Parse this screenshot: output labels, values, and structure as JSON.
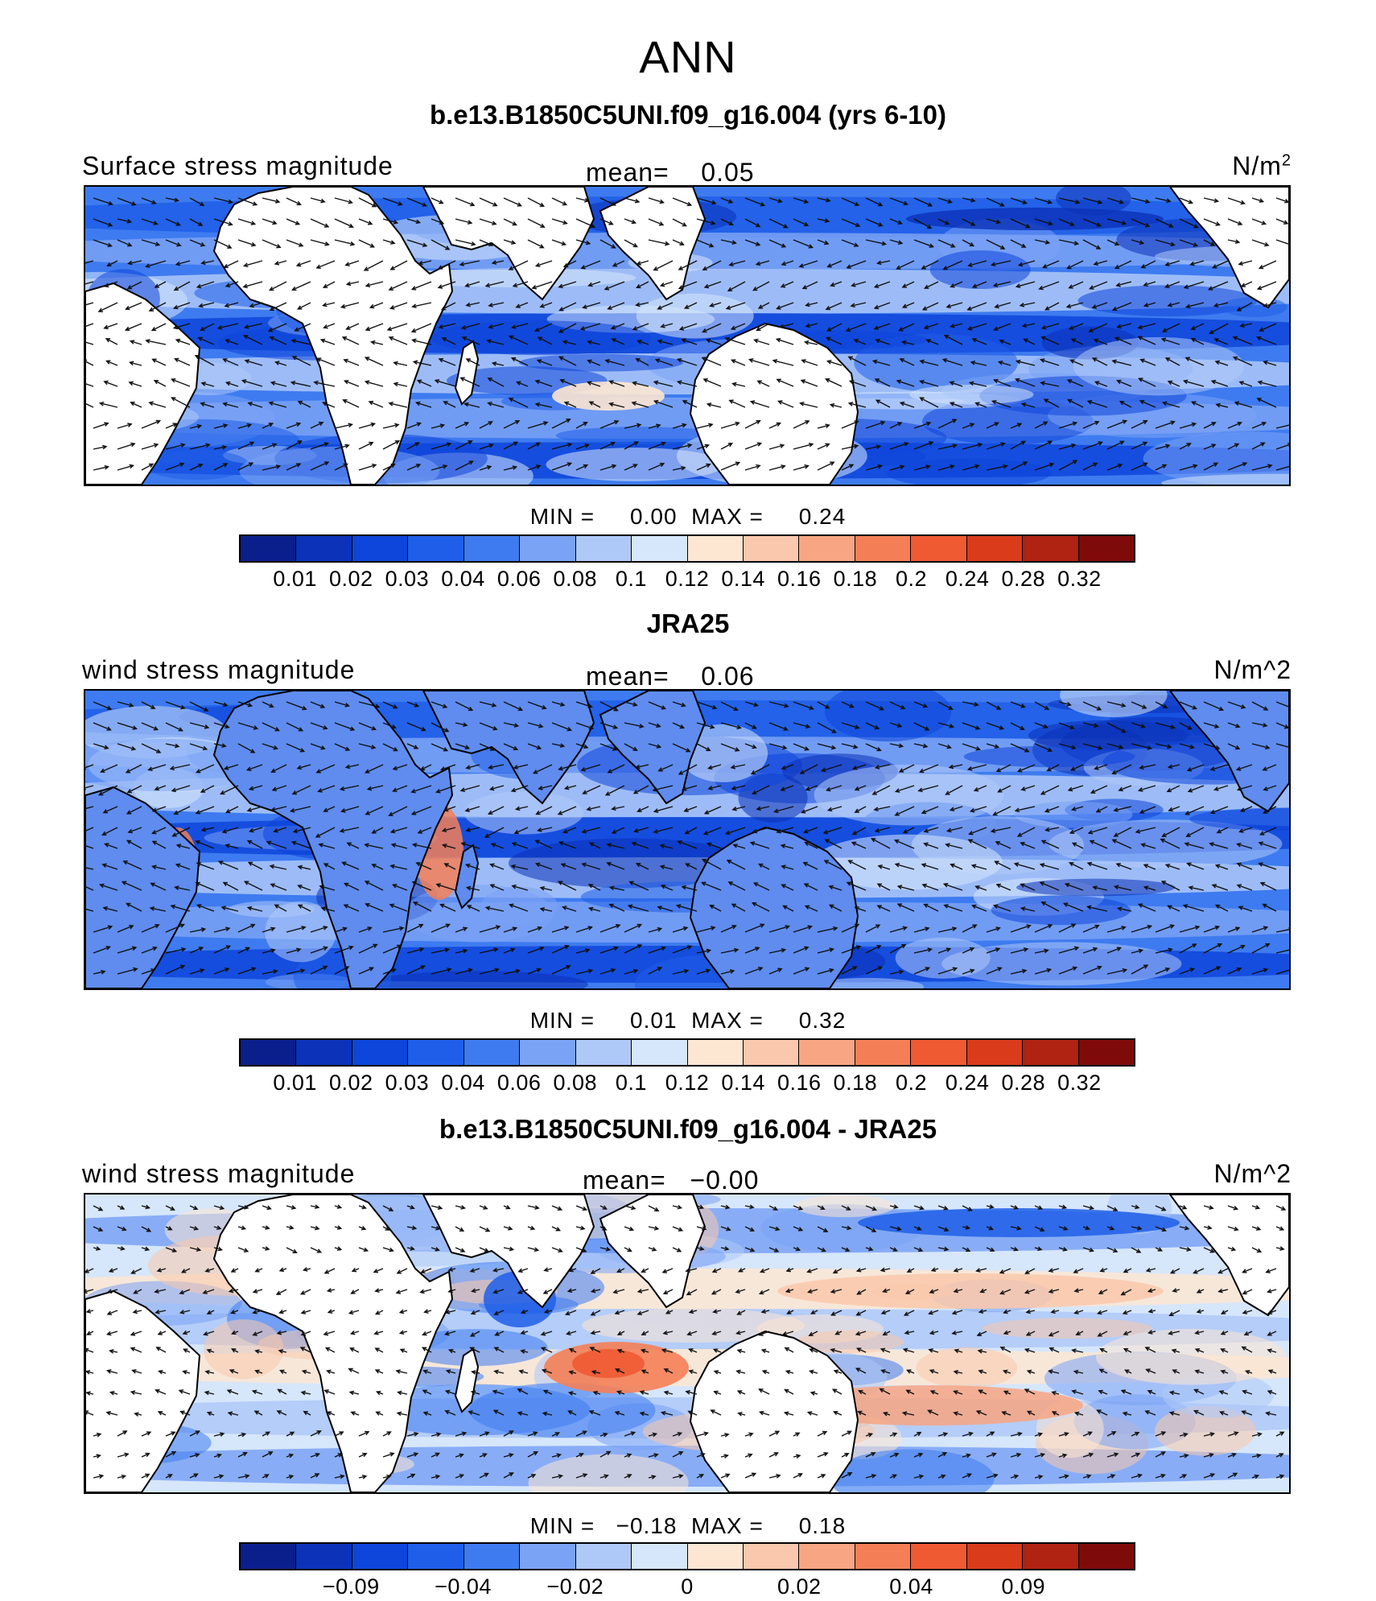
{
  "figure": {
    "title": "ANN"
  },
  "colors": [
    "#0a1f8c",
    "#0b32b8",
    "#0e45da",
    "#1f5ee8",
    "#3e7bf0",
    "#7aa2f5",
    "#aec8f8",
    "#d6e6fb",
    "#fde6d2",
    "#fac8ac",
    "#f7a582",
    "#f47f57",
    "#ef5a33",
    "#d93b1b",
    "#b02212",
    "#7f0a0a"
  ],
  "panels": [
    {
      "title": "b.e13.B1850C5UNI.f09_g16.004 (yrs 6-10)",
      "left_label": "Surface stress magnitude",
      "mean_label": "mean=",
      "mean_value": "0.05",
      "units_base": "N/m",
      "units_sup": "2",
      "stats": "MIN =     0.00  MAX =     0.24",
      "colorbar_labels": [
        "0.01",
        "0.02",
        "0.03",
        "0.04",
        "0.06",
        "0.08",
        "0.1",
        "0.12",
        "0.14",
        "0.16",
        "0.18",
        "0.2",
        "0.24",
        "0.28",
        "0.32"
      ],
      "land_fill": "white"
    },
    {
      "title": "JRA25",
      "left_label": "wind stress magnitude",
      "mean_label": "mean=",
      "mean_value": "0.06",
      "units_base": "N/m^2",
      "units_sup": "",
      "stats": "MIN =     0.01  MAX =     0.32",
      "colorbar_labels": [
        "0.01",
        "0.02",
        "0.03",
        "0.04",
        "0.06",
        "0.08",
        "0.1",
        "0.12",
        "0.14",
        "0.16",
        "0.18",
        "0.2",
        "0.24",
        "0.28",
        "0.32"
      ],
      "land_fill": "data"
    },
    {
      "title": "b.e13.B1850C5UNI.f09_g16.004 - JRA25",
      "left_label": "wind stress magnitude",
      "mean_label": "mean=",
      "mean_value": "−0.00",
      "units_base": "N/m^2",
      "units_sup": "",
      "stats": "MIN =   −0.18  MAX =     0.18",
      "colorbar_labels": [
        "−0.09",
        "−0.04",
        "−0.02",
        "0",
        "0.02",
        "0.04",
        "0.09"
      ],
      "land_fill": "white"
    }
  ]
}
